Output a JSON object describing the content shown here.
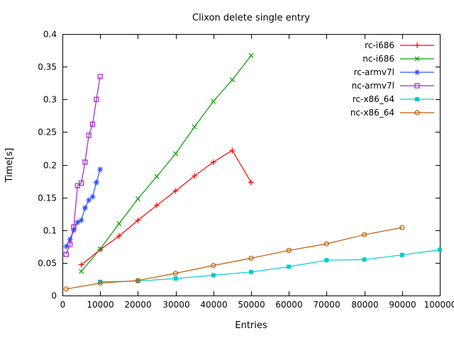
{
  "chart_data": {
    "type": "line",
    "title": "Clixon delete single entry",
    "xlabel": "Entries",
    "ylabel": "Time[s]",
    "xlim": [
      0,
      100000
    ],
    "ylim": [
      0,
      0.4
    ],
    "grid": false,
    "legend_position": "top-right",
    "xticks": [
      {
        "v": 0,
        "label": "0"
      },
      {
        "v": 10000,
        "label": "10000"
      },
      {
        "v": 20000,
        "label": "20000"
      },
      {
        "v": 30000,
        "label": "30000"
      },
      {
        "v": 40000,
        "label": "40000"
      },
      {
        "v": 50000,
        "label": "50000"
      },
      {
        "v": 60000,
        "label": "60000"
      },
      {
        "v": 70000,
        "label": "70000"
      },
      {
        "v": 80000,
        "label": "80000"
      },
      {
        "v": 90000,
        "label": "90000"
      },
      {
        "v": 100000,
        "label": "100000"
      }
    ],
    "yticks": [
      {
        "v": 0,
        "label": "0"
      },
      {
        "v": 0.05,
        "label": "0.05"
      },
      {
        "v": 0.1,
        "label": "0.1"
      },
      {
        "v": 0.15,
        "label": "0.15"
      },
      {
        "v": 0.2,
        "label": "0.2"
      },
      {
        "v": 0.25,
        "label": "0.25"
      },
      {
        "v": 0.3,
        "label": "0.3"
      },
      {
        "v": 0.35,
        "label": "0.35"
      },
      {
        "v": 0.4,
        "label": "0.4"
      }
    ],
    "series": [
      {
        "name": "rc-i686",
        "color": "#ff0000",
        "marker": "plus",
        "x": [
          5000,
          10000,
          15000,
          20000,
          25000,
          30000,
          35000,
          40000,
          45000,
          50000
        ],
        "y": [
          0.047,
          0.07,
          0.091,
          0.115,
          0.138,
          0.16,
          0.183,
          0.204,
          0.222,
          0.173
        ]
      },
      {
        "name": "nc-i686",
        "color": "#00a000",
        "marker": "cross",
        "x": [
          5000,
          10000,
          15000,
          20000,
          25000,
          30000,
          35000,
          40000,
          45000,
          50000
        ],
        "y": [
          0.037,
          0.071,
          0.11,
          0.148,
          0.182,
          0.217,
          0.258,
          0.297,
          0.33,
          0.367
        ]
      },
      {
        "name": "rc-armv7l",
        "color": "#3050ff",
        "marker": "asterisk",
        "x": [
          1000,
          2000,
          3000,
          4000,
          5000,
          6000,
          7000,
          8000,
          9000,
          10000
        ],
        "y": [
          0.075,
          0.086,
          0.1,
          0.112,
          0.115,
          0.134,
          0.146,
          0.151,
          0.173,
          0.193
        ]
      },
      {
        "name": "nc-armv7l",
        "color": "#a020d0",
        "marker": "square-open",
        "x": [
          1000,
          2000,
          3000,
          4000,
          5000,
          6000,
          7000,
          8000,
          9000,
          10000
        ],
        "y": [
          0.063,
          0.078,
          0.105,
          0.168,
          0.172,
          0.204,
          0.245,
          0.262,
          0.3,
          0.335
        ]
      },
      {
        "name": "rc-x86_64",
        "color": "#00cdcd",
        "marker": "square-filled",
        "x": [
          10000,
          20000,
          30000,
          40000,
          50000,
          60000,
          70000,
          80000,
          90000,
          100000
        ],
        "y": [
          0.021,
          0.022,
          0.026,
          0.031,
          0.036,
          0.044,
          0.054,
          0.055,
          0.062,
          0.07
        ]
      },
      {
        "name": "nc-x86_64",
        "color": "#c05a00",
        "marker": "circle-open",
        "x": [
          1000,
          10000,
          20000,
          30000,
          40000,
          50000,
          60000,
          70000,
          80000,
          90000
        ],
        "y": [
          0.01,
          0.019,
          0.023,
          0.034,
          0.046,
          0.057,
          0.069,
          0.079,
          0.093,
          0.104
        ]
      }
    ]
  }
}
